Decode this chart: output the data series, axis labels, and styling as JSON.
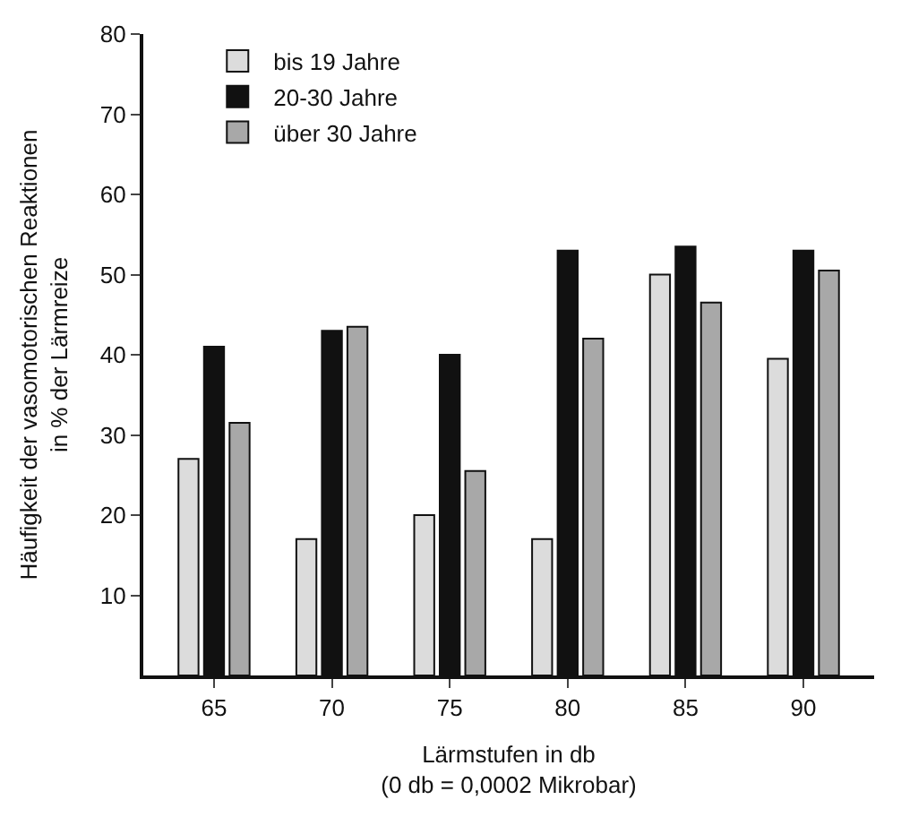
{
  "chart_data": {
    "type": "bar",
    "categories": [
      "65",
      "70",
      "75",
      "80",
      "85",
      "90"
    ],
    "series": [
      {
        "name": "bis 19 Jahre",
        "color": "#dcdcdc",
        "values": [
          27,
          17,
          20,
          17,
          50,
          39.5
        ]
      },
      {
        "name": "20-30 Jahre",
        "color": "#111111",
        "values": [
          41,
          43,
          40,
          53,
          53.5,
          53
        ]
      },
      {
        "name": "über 30 Jahre",
        "color": "#a8a8a8",
        "values": [
          31.5,
          43.5,
          25.5,
          42,
          46.5,
          50.5
        ]
      }
    ],
    "xlabel": "Lärmstufen in db\n(0 db = 0,0002 Mikrobar)",
    "ylabel": "Häufigkeit der vasomotorischen Reaktionen\nin % der Lärmreize",
    "ylim": [
      0,
      80
    ],
    "yticks": [
      10,
      20,
      30,
      40,
      50,
      60,
      70,
      80
    ],
    "legend": "top left"
  }
}
